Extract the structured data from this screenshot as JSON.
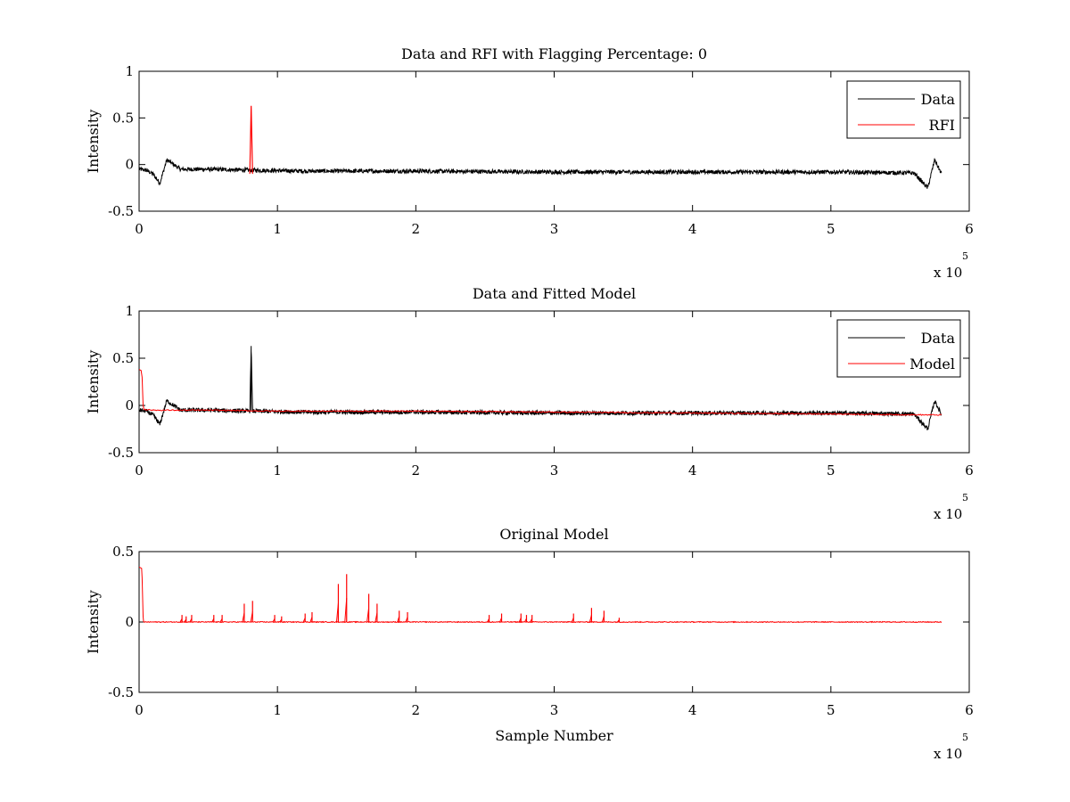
{
  "chart_data": [
    {
      "type": "line",
      "title": "Data and RFI with Flagging Percentage: 0",
      "xlabel": "",
      "ylabel": "Intensity",
      "xlim": [
        0,
        600000
      ],
      "ylim": [
        -0.5,
        1
      ],
      "x_ticks": [
        "0",
        "1",
        "2",
        "3",
        "4",
        "5",
        "6"
      ],
      "y_ticks": [
        "-0.5",
        "0",
        "0.5",
        "1"
      ],
      "x_multiplier": {
        "base": "x 10",
        "exponent": "5"
      },
      "legend_position": "top-right",
      "grid": false,
      "series": [
        {
          "name": "Data",
          "color": "#000000",
          "x": [
            0,
            5000,
            10000,
            15000,
            20000,
            30000,
            50000,
            80000,
            120000,
            200000,
            300000,
            400000,
            500000,
            560000,
            570000,
            575000,
            580000
          ],
          "y": [
            -0.05,
            -0.06,
            -0.1,
            -0.2,
            0.05,
            -0.05,
            -0.05,
            -0.06,
            -0.07,
            -0.07,
            -0.08,
            -0.08,
            -0.08,
            -0.09,
            -0.25,
            0.05,
            -0.1
          ]
        },
        {
          "name": "RFI",
          "color": "#ff0000",
          "x": [
            80000,
            81000,
            82000
          ],
          "y": [
            -0.1,
            0.63,
            -0.1
          ]
        }
      ]
    },
    {
      "type": "line",
      "title": "Data and Fitted Model",
      "xlabel": "",
      "ylabel": "Intensity",
      "xlim": [
        0,
        600000
      ],
      "ylim": [
        -0.5,
        1
      ],
      "x_ticks": [
        "0",
        "1",
        "2",
        "3",
        "4",
        "5",
        "6"
      ],
      "y_ticks": [
        "-0.5",
        "0",
        "0.5",
        "1"
      ],
      "x_multiplier": {
        "base": "x 10",
        "exponent": "5"
      },
      "legend_position": "top-right",
      "grid": false,
      "series": [
        {
          "name": "Data",
          "color": "#000000",
          "x": [
            0,
            5000,
            10000,
            15000,
            20000,
            30000,
            50000,
            80000,
            81000,
            82000,
            120000,
            200000,
            300000,
            400000,
            500000,
            560000,
            570000,
            575000,
            580000
          ],
          "y": [
            -0.05,
            -0.06,
            -0.1,
            -0.2,
            0.05,
            -0.05,
            -0.05,
            -0.06,
            0.63,
            -0.06,
            -0.07,
            -0.07,
            -0.08,
            -0.08,
            -0.08,
            -0.09,
            -0.25,
            0.05,
            -0.1
          ]
        },
        {
          "name": "Model",
          "color": "#ff0000",
          "x": [
            0,
            2000,
            3000,
            10000,
            50000,
            100000,
            200000,
            300000,
            400000,
            500000,
            570000,
            580000
          ],
          "y": [
            0.38,
            0.37,
            -0.04,
            -0.05,
            -0.05,
            -0.06,
            -0.06,
            -0.07,
            -0.08,
            -0.09,
            -0.1,
            -0.1
          ]
        }
      ]
    },
    {
      "type": "line",
      "title": "Original Model",
      "xlabel": "Sample Number",
      "ylabel": "Intensity",
      "xlim": [
        0,
        600000
      ],
      "ylim": [
        -0.5,
        0.5
      ],
      "x_ticks": [
        "0",
        "1",
        "2",
        "3",
        "4",
        "5",
        "6"
      ],
      "y_ticks": [
        "-0.5",
        "0",
        "0.5"
      ],
      "x_multiplier": {
        "base": "x 10",
        "exponent": "5"
      },
      "legend_position": "none",
      "grid": false,
      "series": [
        {
          "color": "#ff0000",
          "x": [
            0,
            2000,
            3000,
            580000
          ],
          "y": [
            0.39,
            0.38,
            0.0,
            0.0
          ],
          "peaks": [
            [
              31000,
              0.05
            ],
            [
              34000,
              0.04
            ],
            [
              38000,
              0.05
            ],
            [
              54000,
              0.05
            ],
            [
              60000,
              0.05
            ],
            [
              76000,
              0.13
            ],
            [
              82000,
              0.15
            ],
            [
              98000,
              0.05
            ],
            [
              103000,
              0.04
            ],
            [
              120000,
              0.06
            ],
            [
              125000,
              0.07
            ],
            [
              144000,
              0.27
            ],
            [
              150000,
              0.34
            ],
            [
              166000,
              0.2
            ],
            [
              172000,
              0.13
            ],
            [
              188000,
              0.08
            ],
            [
              194000,
              0.07
            ],
            [
              253000,
              0.05
            ],
            [
              262000,
              0.06
            ],
            [
              276000,
              0.06
            ],
            [
              280000,
              0.05
            ],
            [
              284000,
              0.05
            ],
            [
              314000,
              0.06
            ],
            [
              327000,
              0.1
            ],
            [
              336000,
              0.08
            ],
            [
              347000,
              0.03
            ]
          ]
        }
      ]
    }
  ]
}
